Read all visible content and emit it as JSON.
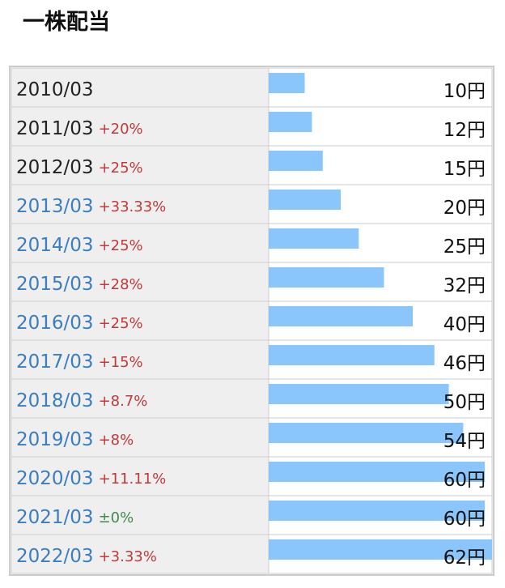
{
  "chart_data": {
    "type": "bar",
    "title": "一株配当",
    "categories": [
      "2010/03",
      "2011/03",
      "2012/03",
      "2013/03",
      "2014/03",
      "2015/03",
      "2016/03",
      "2017/03",
      "2018/03",
      "2019/03",
      "2020/03",
      "2021/03",
      "2022/03"
    ],
    "category_colors": [
      "#222222",
      "#222222",
      "#222222",
      "#3b7dbf",
      "#3b7dbf",
      "#3b7dbf",
      "#3b7dbf",
      "#3b7dbf",
      "#3b7dbf",
      "#3b7dbf",
      "#3b7dbf",
      "#3b7dbf",
      "#3b7dbf"
    ],
    "changes": [
      null,
      "+20%",
      "+25%",
      "+33.33%",
      "+25%",
      "+28%",
      "+25%",
      "+15%",
      "+8.7%",
      "+8%",
      "+11.11%",
      "±0%",
      "+3.33%"
    ],
    "change_colors": [
      null,
      "#c0393b",
      "#c0393b",
      "#c0393b",
      "#c0393b",
      "#c0393b",
      "#c0393b",
      "#c0393b",
      "#c0393b",
      "#c0393b",
      "#c0393b",
      "#3f8a4f",
      "#c0393b"
    ],
    "values": [
      10,
      12,
      15,
      20,
      25,
      32,
      40,
      46,
      50,
      54,
      60,
      60,
      62
    ],
    "value_labels": [
      "10円",
      "12円",
      "15円",
      "20円",
      "25円",
      "32円",
      "40円",
      "46円",
      "50円",
      "54円",
      "60円",
      "60円",
      "62円"
    ],
    "color": "#8ac6fb"
  }
}
